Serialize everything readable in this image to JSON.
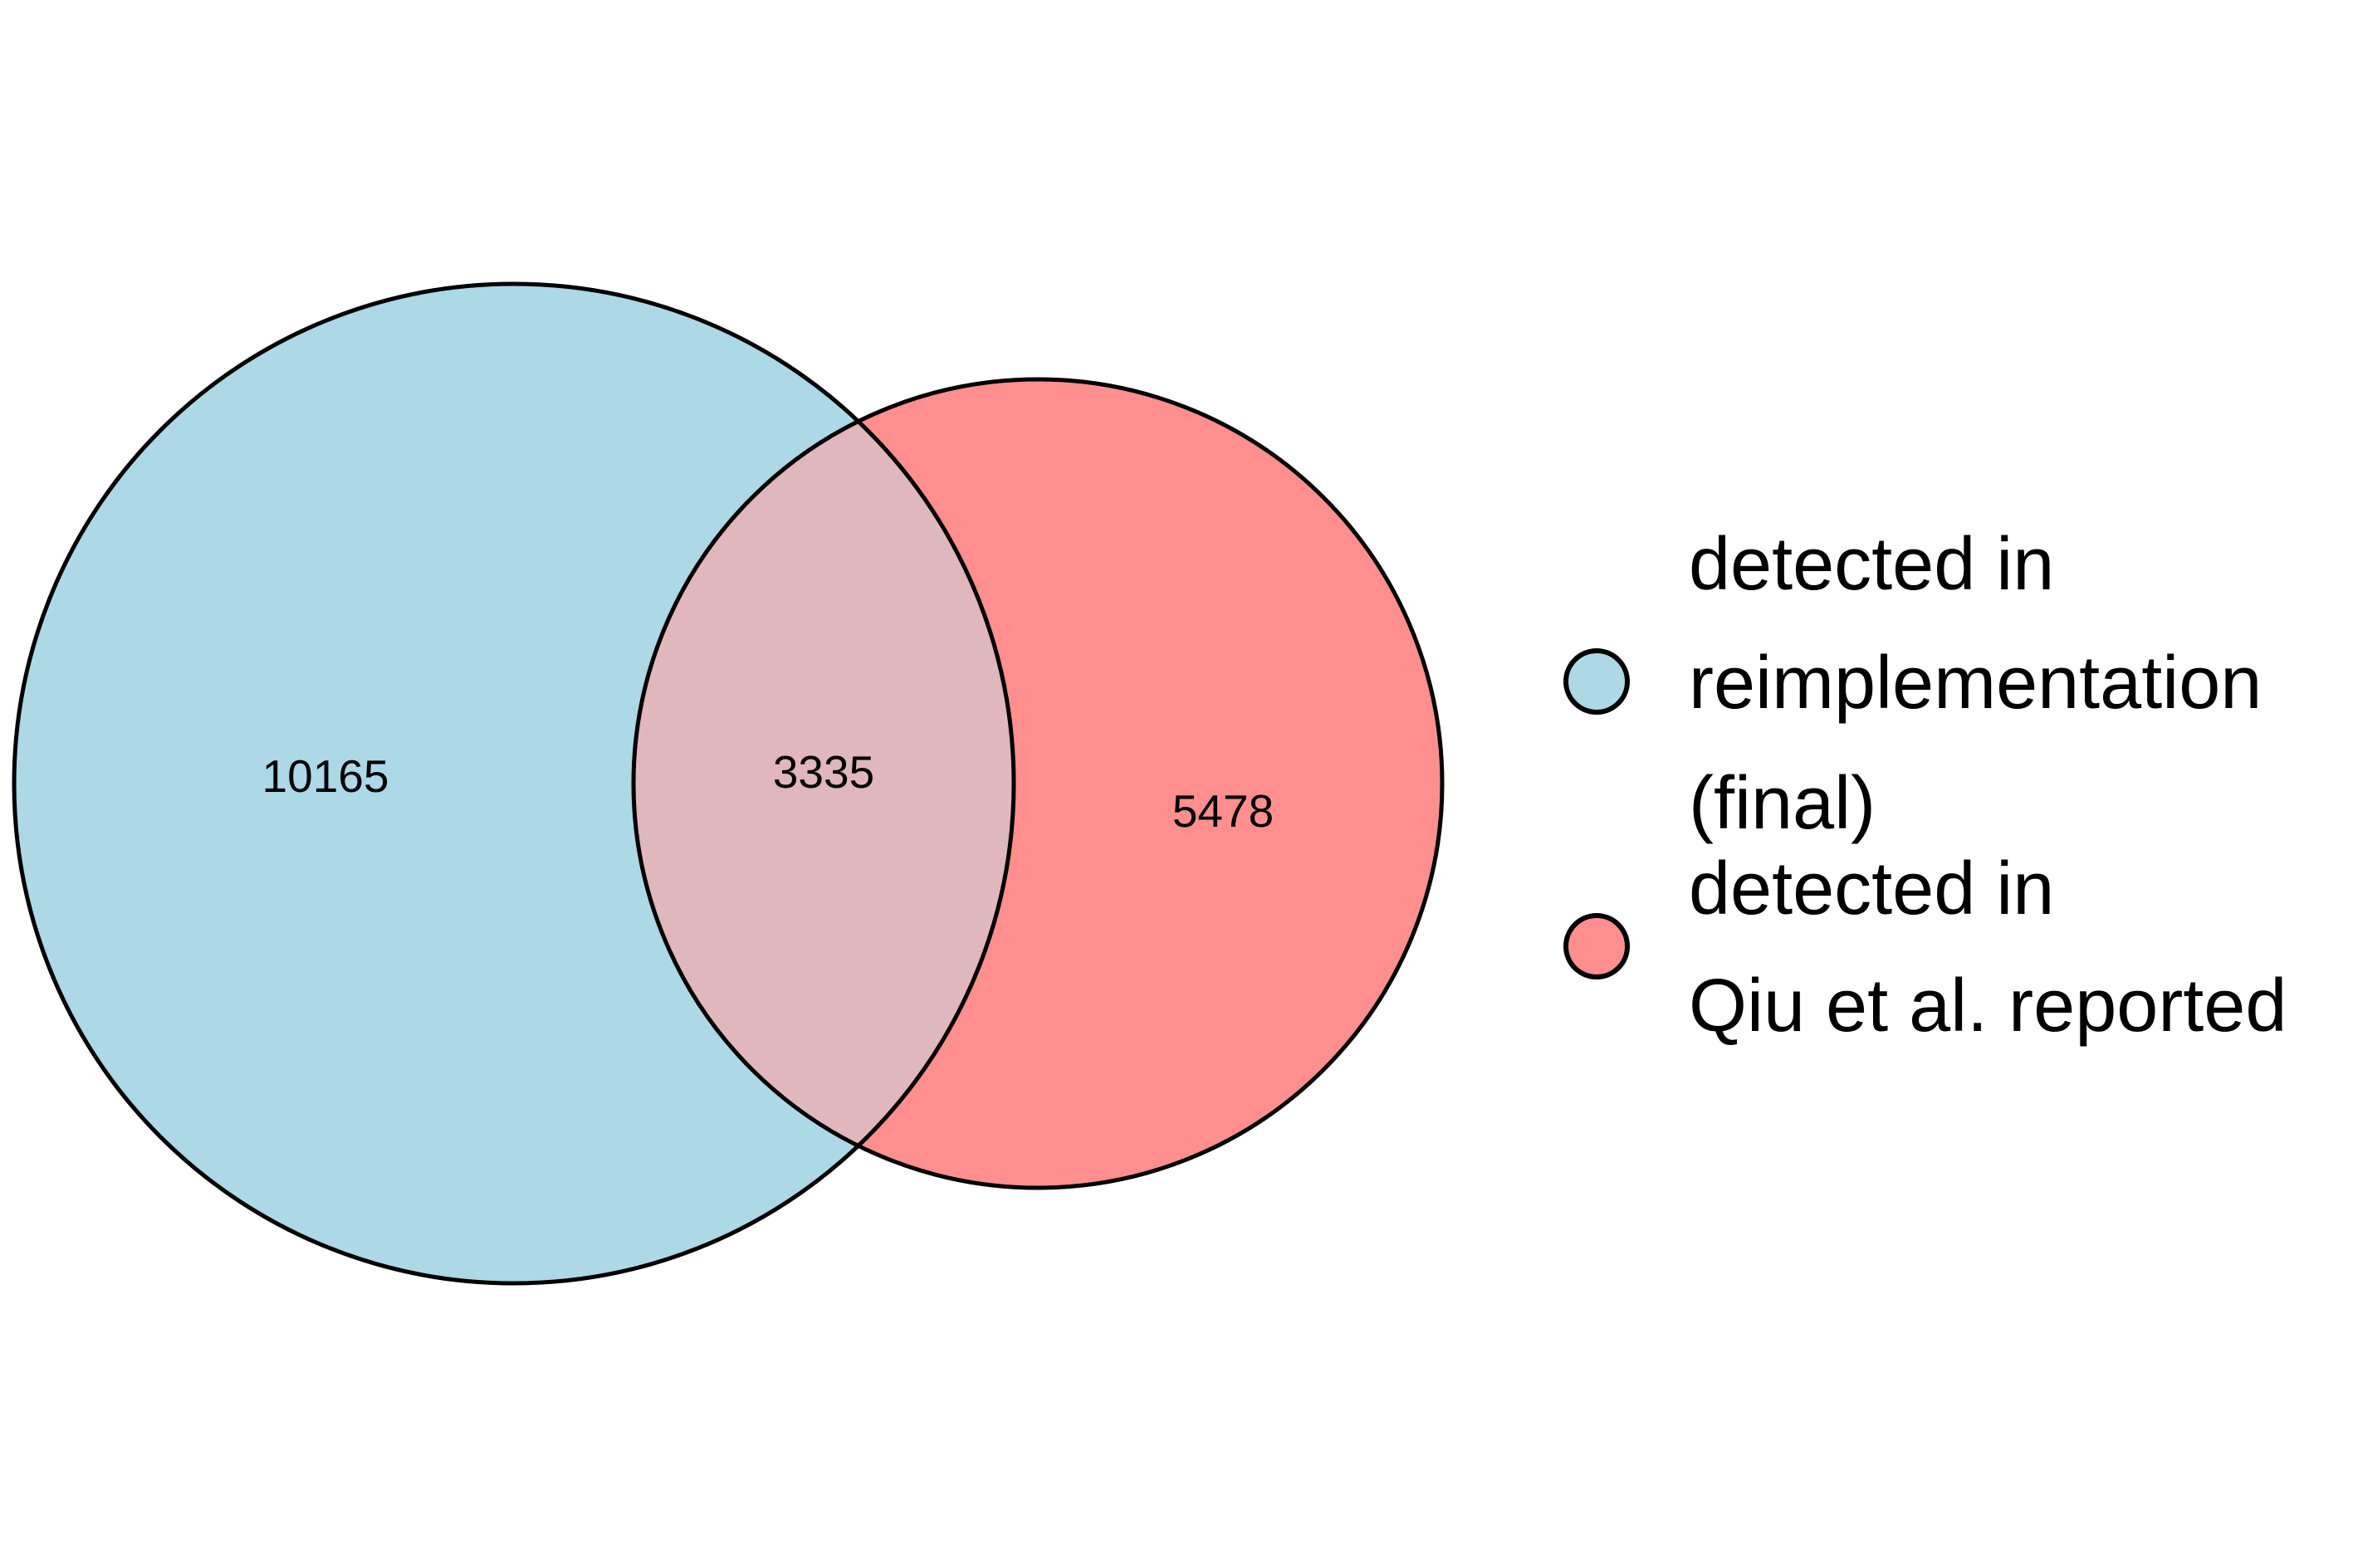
{
  "chart_data": {
    "type": "venn",
    "sets": [
      {
        "label_lines": [
          "detected in",
          "reimplementation",
          "(final)"
        ],
        "color": "#ADD8E6",
        "only_count": "10165"
      },
      {
        "label_lines": [
          "detected in",
          "Qiu et al. reported"
        ],
        "color": "#FF8F8F",
        "only_count": "5478"
      }
    ],
    "intersection": {
      "count": "3335",
      "color": "#DFB7BC"
    },
    "outline_color": "#000000"
  }
}
